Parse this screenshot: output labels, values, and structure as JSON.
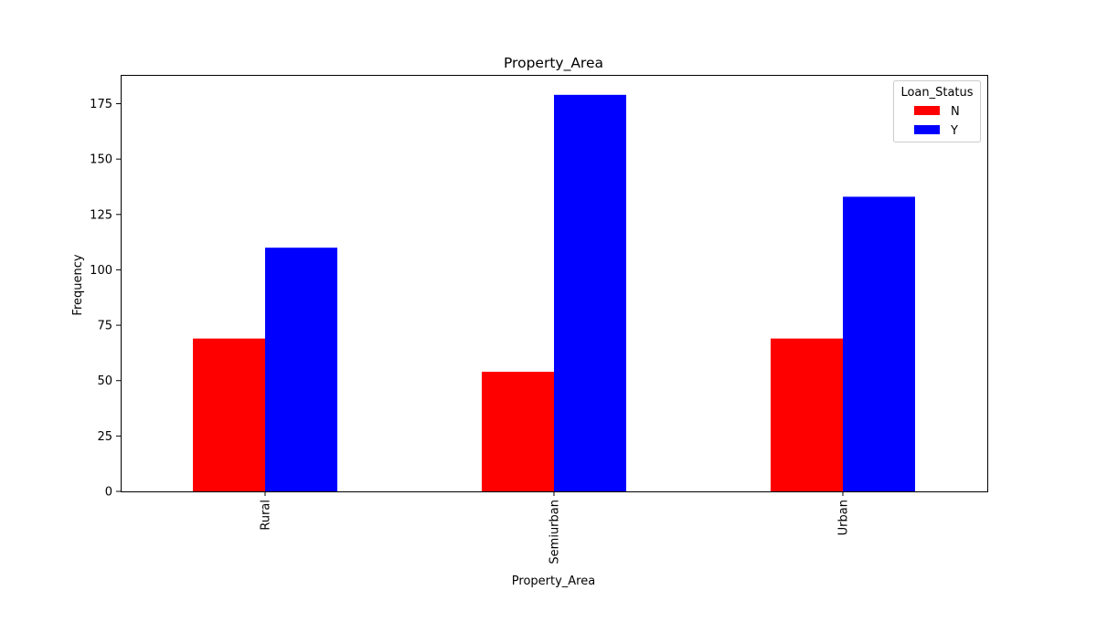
{
  "chart_data": {
    "type": "bar",
    "title": "Property_Area",
    "xlabel": "Property_Area",
    "ylabel": "Frequency",
    "categories": [
      "Rural",
      "Semiurban",
      "Urban"
    ],
    "series": [
      {
        "name": "N",
        "values": [
          69,
          54,
          69
        ],
        "color": "#ff0000"
      },
      {
        "name": "Y",
        "values": [
          110,
          179,
          133
        ],
        "color": "#0000ff"
      }
    ],
    "ylim": [
      0,
      188
    ],
    "yticks": [
      0,
      25,
      50,
      75,
      100,
      125,
      150,
      175
    ],
    "legend": {
      "title": "Loan_Status",
      "position": "top-right"
    },
    "grid": false
  }
}
